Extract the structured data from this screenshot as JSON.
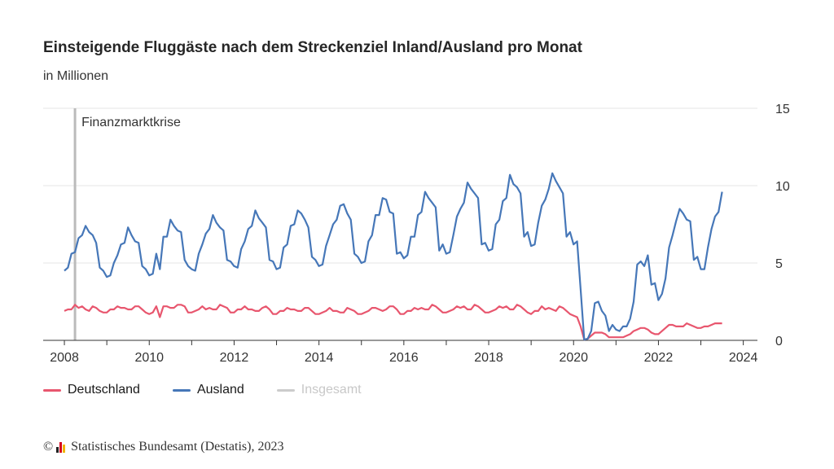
{
  "header": {
    "title": "Einsteigende Fluggäste nach dem Streckenziel Inland/Ausland pro Monat",
    "subtitle": "in Millionen"
  },
  "footer": {
    "copyright_symbol": "©",
    "source": "Statistisches Bundesamt (Destatis), 2023"
  },
  "legend": [
    {
      "label": "Deutschland",
      "color": "#e8566e",
      "active": true
    },
    {
      "label": "Ausland",
      "color": "#4677b8",
      "active": true
    },
    {
      "label": "Insgesamt",
      "color": "#cccccc",
      "active": false
    }
  ],
  "chart_data": {
    "type": "line",
    "title": "Einsteigende Fluggäste nach dem Streckenziel Inland/Ausland pro Monat",
    "subtitle": "in Millionen",
    "x_start": "2008-01",
    "x_end": "2023-07",
    "xlim": [
      "2007-07",
      "2024-05"
    ],
    "x_ticks": [
      "2008",
      "2010",
      "2012",
      "2014",
      "2016",
      "2018",
      "2020",
      "2022",
      "2024"
    ],
    "ylim": [
      0,
      15
    ],
    "y_ticks": [
      0,
      5,
      10,
      15
    ],
    "y_axis_position": "right",
    "grid": "horizontal",
    "legend_position": "bottom-left",
    "annotations": [
      {
        "label": "Finanzmarktkrise",
        "x": "2008-04",
        "color": "#bbbbbb"
      }
    ],
    "series": [
      {
        "name": "Deutschland",
        "color": "#e8566e",
        "values": [
          1.9,
          2.0,
          2.0,
          2.3,
          2.1,
          2.2,
          2.0,
          1.9,
          2.2,
          2.1,
          1.9,
          1.8,
          1.8,
          2.0,
          2.0,
          2.2,
          2.1,
          2.1,
          2.0,
          2.0,
          2.2,
          2.2,
          2.0,
          1.8,
          1.7,
          1.8,
          2.2,
          1.5,
          2.2,
          2.2,
          2.1,
          2.1,
          2.3,
          2.3,
          2.2,
          1.8,
          1.8,
          1.9,
          2.0,
          2.2,
          2.0,
          2.1,
          2.0,
          2.0,
          2.3,
          2.2,
          2.1,
          1.8,
          1.8,
          2.0,
          2.0,
          2.2,
          2.0,
          2.0,
          1.9,
          1.9,
          2.1,
          2.2,
          2.0,
          1.7,
          1.7,
          1.9,
          1.9,
          2.1,
          2.0,
          2.0,
          1.9,
          1.9,
          2.1,
          2.1,
          1.9,
          1.7,
          1.7,
          1.8,
          1.9,
          2.1,
          1.9,
          1.9,
          1.8,
          1.8,
          2.1,
          2.0,
          1.9,
          1.7,
          1.7,
          1.8,
          1.9,
          2.1,
          2.1,
          2.0,
          1.9,
          2.0,
          2.2,
          2.2,
          2.0,
          1.7,
          1.7,
          1.9,
          1.9,
          2.1,
          2.0,
          2.1,
          2.0,
          2.0,
          2.3,
          2.2,
          2.0,
          1.8,
          1.8,
          1.9,
          2.0,
          2.2,
          2.1,
          2.2,
          2.0,
          2.0,
          2.3,
          2.2,
          2.0,
          1.8,
          1.8,
          1.9,
          2.0,
          2.2,
          2.1,
          2.2,
          2.0,
          2.0,
          2.3,
          2.2,
          2.0,
          1.8,
          1.7,
          1.9,
          1.9,
          2.2,
          2.0,
          2.1,
          2.0,
          1.9,
          2.2,
          2.1,
          1.9,
          1.7,
          1.6,
          1.5,
          0.9,
          0.05,
          0.1,
          0.3,
          0.5,
          0.5,
          0.5,
          0.4,
          0.2,
          0.2,
          0.2,
          0.2,
          0.2,
          0.3,
          0.4,
          0.6,
          0.7,
          0.8,
          0.8,
          0.7,
          0.5,
          0.4,
          0.4,
          0.6,
          0.8,
          1.0,
          1.0,
          0.9,
          0.9,
          0.9,
          1.1,
          1.0,
          0.9,
          0.8,
          0.8,
          0.9,
          0.9,
          1.0,
          1.1,
          1.1,
          1.1
        ]
      },
      {
        "name": "Ausland",
        "color": "#4677b8",
        "values": [
          4.5,
          4.7,
          5.6,
          5.7,
          6.6,
          6.8,
          7.4,
          7.0,
          6.8,
          6.3,
          4.7,
          4.5,
          4.1,
          4.2,
          5.0,
          5.5,
          6.2,
          6.3,
          7.3,
          6.8,
          6.4,
          6.3,
          4.8,
          4.6,
          4.2,
          4.3,
          5.6,
          4.6,
          6.7,
          6.7,
          7.8,
          7.4,
          7.1,
          7.0,
          5.2,
          4.8,
          4.6,
          4.5,
          5.6,
          6.2,
          6.9,
          7.2,
          8.1,
          7.6,
          7.3,
          7.1,
          5.2,
          5.1,
          4.8,
          4.7,
          5.9,
          6.4,
          7.2,
          7.4,
          8.4,
          7.9,
          7.6,
          7.3,
          5.2,
          5.1,
          4.6,
          4.7,
          6.0,
          6.2,
          7.4,
          7.5,
          8.4,
          8.2,
          7.8,
          7.3,
          5.4,
          5.2,
          4.8,
          4.9,
          6.1,
          6.8,
          7.5,
          7.8,
          8.7,
          8.8,
          8.2,
          7.8,
          5.6,
          5.4,
          5.0,
          5.1,
          6.4,
          6.8,
          8.1,
          8.1,
          9.2,
          9.1,
          8.3,
          8.2,
          5.6,
          5.7,
          5.3,
          5.5,
          6.7,
          6.7,
          8.1,
          8.3,
          9.6,
          9.2,
          8.9,
          8.6,
          5.8,
          6.2,
          5.6,
          5.7,
          6.8,
          8.0,
          8.5,
          8.9,
          10.2,
          9.8,
          9.5,
          9.2,
          6.2,
          6.3,
          5.8,
          5.9,
          7.5,
          7.8,
          9.0,
          9.2,
          10.7,
          10.1,
          9.9,
          9.5,
          6.7,
          7.0,
          6.1,
          6.2,
          7.6,
          8.7,
          9.1,
          9.8,
          10.8,
          10.3,
          9.9,
          9.5,
          6.7,
          7.0,
          6.2,
          6.4,
          3.3,
          0.05,
          0.1,
          0.6,
          2.4,
          2.5,
          1.9,
          1.6,
          0.6,
          1.0,
          0.7,
          0.6,
          0.9,
          0.9,
          1.4,
          2.5,
          4.9,
          5.1,
          4.8,
          5.5,
          3.6,
          3.7,
          2.6,
          3.0,
          4.0,
          6.0,
          6.8,
          7.7,
          8.5,
          8.2,
          7.8,
          7.7,
          5.2,
          5.4,
          4.6,
          4.6,
          6.0,
          7.2,
          8.0,
          8.3,
          9.6
        ]
      }
    ]
  }
}
